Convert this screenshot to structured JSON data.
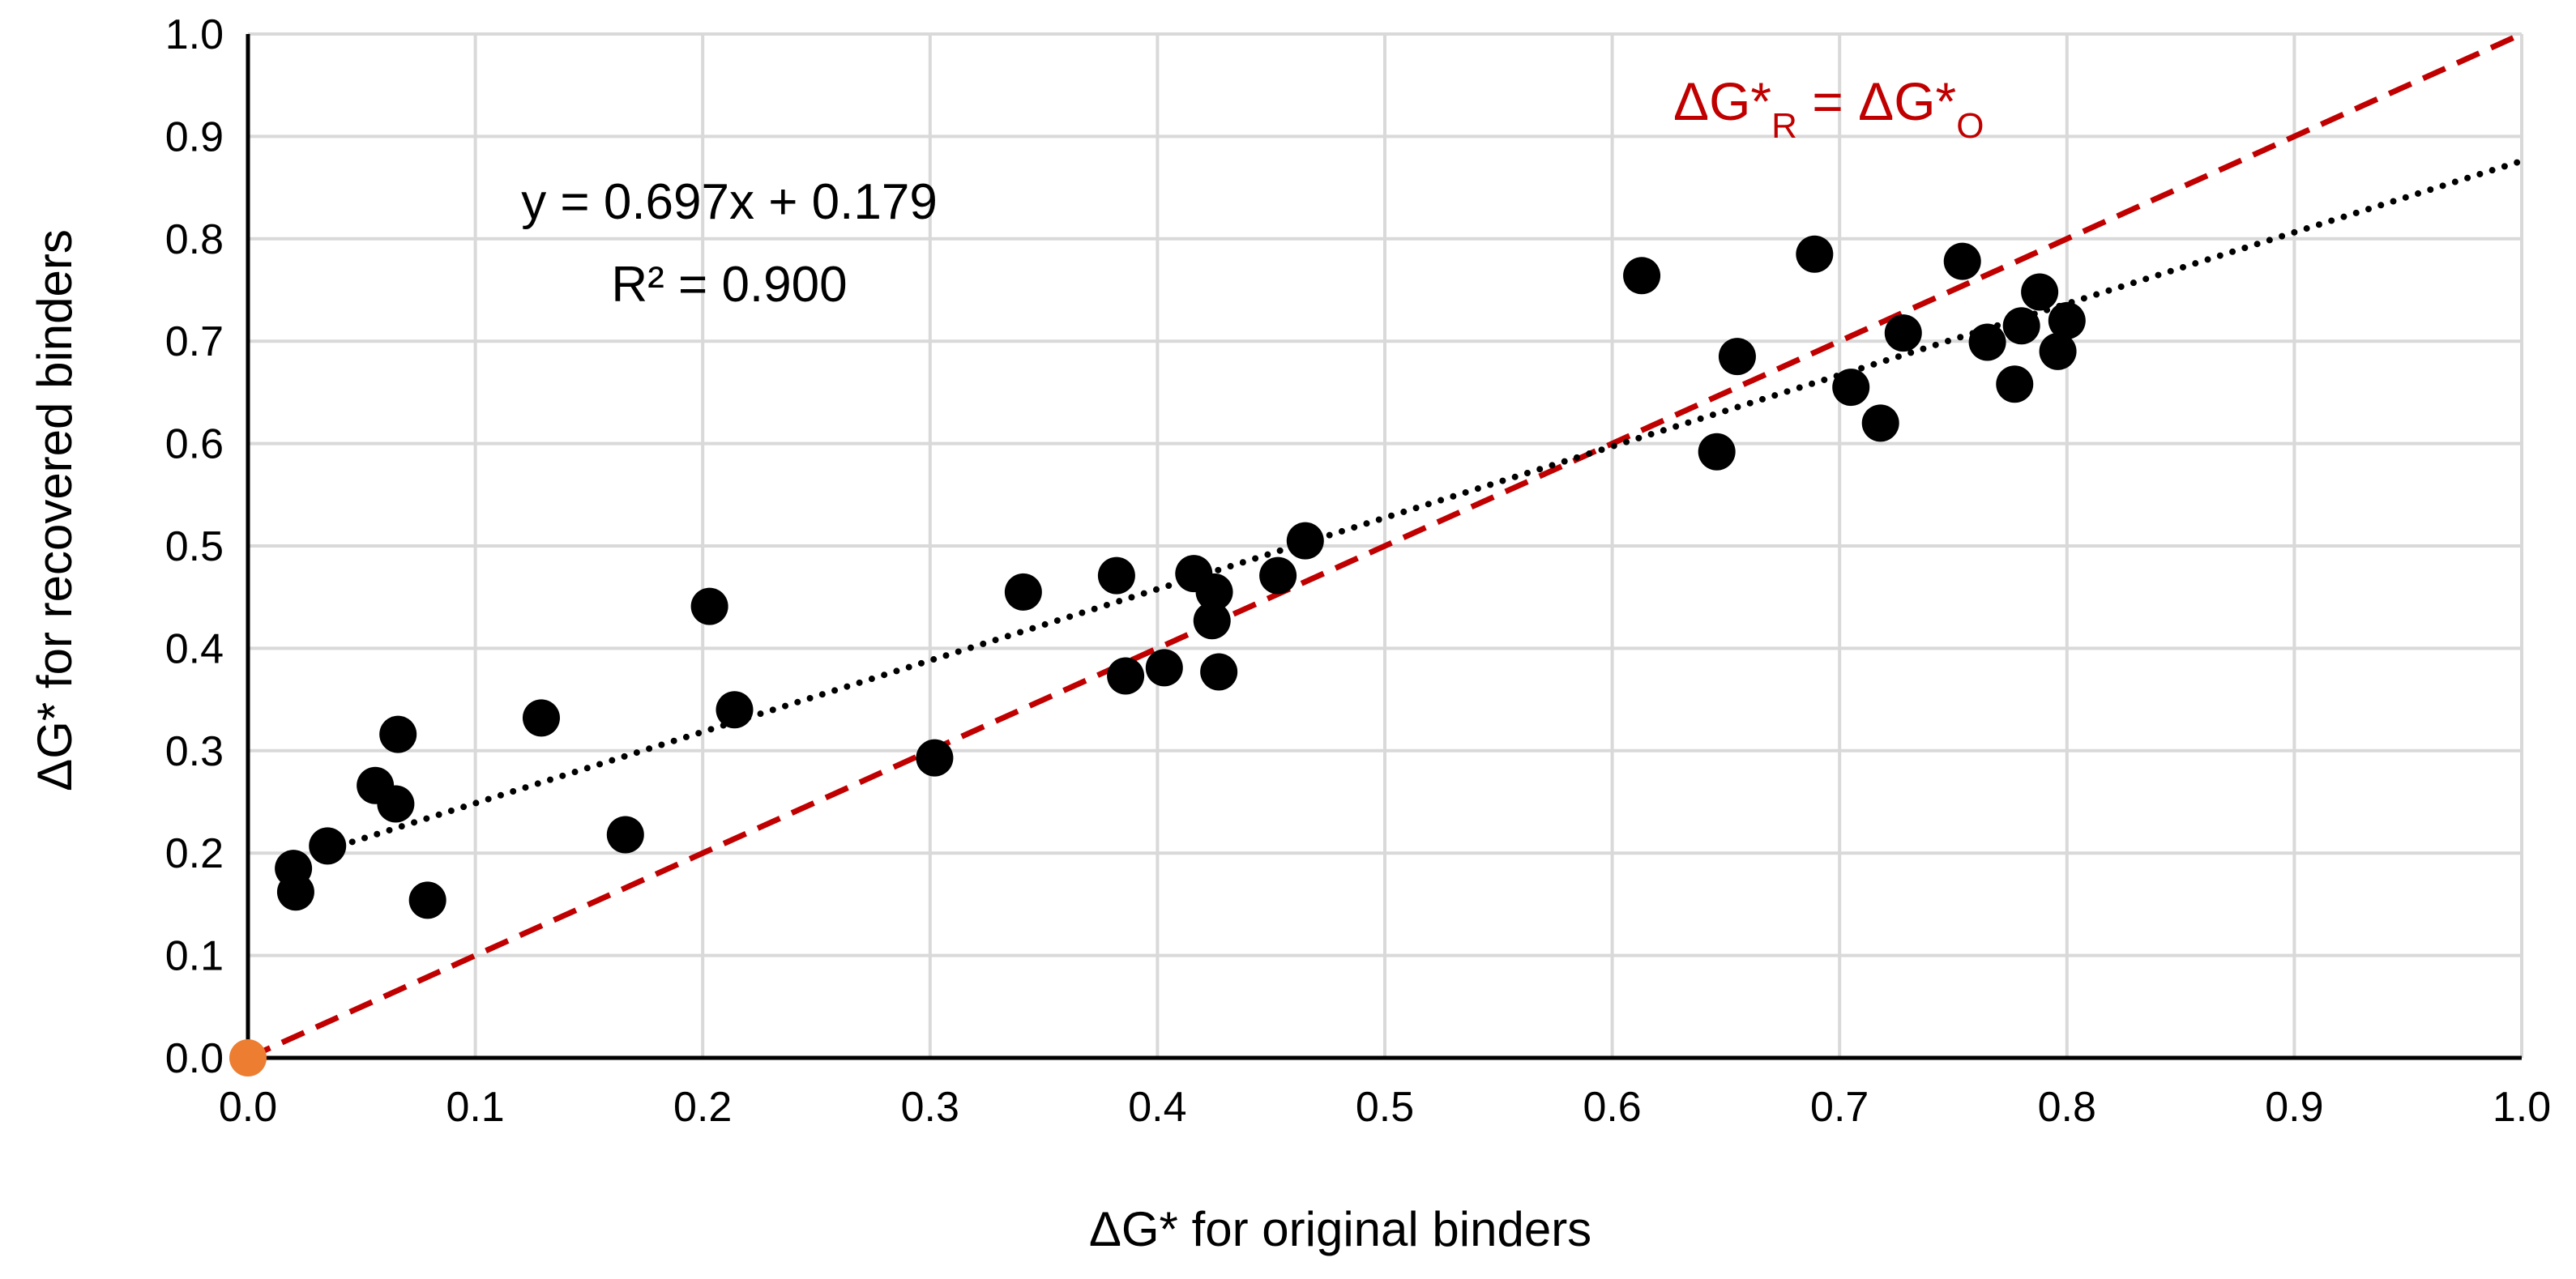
{
  "chart_data": {
    "type": "scatter",
    "title": "",
    "xlabel": "ΔG* for original binders",
    "ylabel": "ΔG* for recovered binders",
    "xlim": [
      0.0,
      1.0
    ],
    "ylim": [
      0.0,
      1.0
    ],
    "xticks": [
      "0.0",
      "0.1",
      "0.2",
      "0.3",
      "0.4",
      "0.5",
      "0.6",
      "0.7",
      "0.8",
      "0.9",
      "1.0"
    ],
    "yticks": [
      "0.0",
      "0.1",
      "0.2",
      "0.3",
      "0.4",
      "0.5",
      "0.6",
      "0.7",
      "0.8",
      "0.9",
      "1.0"
    ],
    "grid": true,
    "legend": "none",
    "colors": {
      "points": "#000000",
      "reference_line": "#c00000",
      "trendline": "#000000",
      "origin_point": "#ed7d31",
      "grid": "#d9d9d9"
    },
    "series": [
      {
        "points": [
          {
            "x": 0.02,
            "y": 0.185
          },
          {
            "x": 0.021,
            "y": 0.162
          },
          {
            "x": 0.035,
            "y": 0.207
          },
          {
            "x": 0.056,
            "y": 0.266
          },
          {
            "x": 0.065,
            "y": 0.248
          },
          {
            "x": 0.066,
            "y": 0.316
          },
          {
            "x": 0.079,
            "y": 0.154
          },
          {
            "x": 0.129,
            "y": 0.332
          },
          {
            "x": 0.166,
            "y": 0.218
          },
          {
            "x": 0.203,
            "y": 0.441
          },
          {
            "x": 0.214,
            "y": 0.34
          },
          {
            "x": 0.302,
            "y": 0.293
          },
          {
            "x": 0.341,
            "y": 0.455
          },
          {
            "x": 0.382,
            "y": 0.471
          },
          {
            "x": 0.386,
            "y": 0.373
          },
          {
            "x": 0.403,
            "y": 0.381
          },
          {
            "x": 0.416,
            "y": 0.473
          },
          {
            "x": 0.424,
            "y": 0.427
          },
          {
            "x": 0.425,
            "y": 0.455
          },
          {
            "x": 0.427,
            "y": 0.377
          },
          {
            "x": 0.453,
            "y": 0.471
          },
          {
            "x": 0.465,
            "y": 0.505
          },
          {
            "x": 0.613,
            "y": 0.764
          },
          {
            "x": 0.646,
            "y": 0.592
          },
          {
            "x": 0.655,
            "y": 0.685
          },
          {
            "x": 0.689,
            "y": 0.785
          },
          {
            "x": 0.705,
            "y": 0.655
          },
          {
            "x": 0.718,
            "y": 0.62
          },
          {
            "x": 0.728,
            "y": 0.708
          },
          {
            "x": 0.754,
            "y": 0.778
          },
          {
            "x": 0.765,
            "y": 0.699
          },
          {
            "x": 0.777,
            "y": 0.658
          },
          {
            "x": 0.78,
            "y": 0.715
          },
          {
            "x": 0.788,
            "y": 0.748
          },
          {
            "x": 0.796,
            "y": 0.69
          },
          {
            "x": 0.8,
            "y": 0.72
          }
        ]
      }
    ],
    "origin_point": {
      "x": 0.0,
      "y": 0.0
    },
    "trendline": {
      "type": "linear",
      "slope": 0.697,
      "intercept": 0.179,
      "x_range": [
        0.035,
        1.0
      ],
      "equation": "y = 0.697x + 0.179",
      "r2_label": "R² = 0.900"
    },
    "reference_line": {
      "label_main": "ΔG*",
      "label_sub_left": "R",
      "label_eq": " = ΔG*",
      "label_sub_right": "O",
      "points": [
        [
          0.0,
          0.0
        ],
        [
          1.0,
          1.0
        ]
      ]
    }
  }
}
